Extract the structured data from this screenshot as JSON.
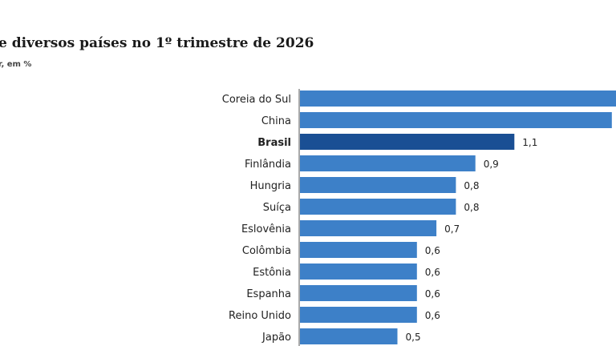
{
  "header": {
    "title": "e diversos países no 1º trimestre de 2026",
    "subtitle": "r, em %"
  },
  "colors": {
    "bar": "#3d80c8",
    "bar_highlight": "#1a4f94",
    "axis": "#555555"
  },
  "chart_data": {
    "type": "bar",
    "orientation": "horizontal",
    "title": "e diversos países no 1º trimestre de 2026",
    "subtitle": "r, em %",
    "categories": [
      "Coreia do Sul",
      "China",
      "Brasil",
      "Finlândia",
      "Hungria",
      "Suíça",
      "Eslovênia",
      "Colômbia",
      "Estônia",
      "Espanha",
      "Reino Unido",
      "Japão"
    ],
    "values": [
      1.7,
      1.6,
      1.1,
      0.9,
      0.8,
      0.8,
      0.7,
      0.6,
      0.6,
      0.6,
      0.6,
      0.5
    ],
    "value_labels": [
      "",
      "",
      "1,1",
      "0,9",
      "0,8",
      "0,8",
      "0,7",
      "0,6",
      "0,6",
      "0,6",
      "0,6",
      "0,5"
    ],
    "highlight": "Brasil",
    "xlim": [
      0,
      1.7
    ],
    "grid": false
  }
}
